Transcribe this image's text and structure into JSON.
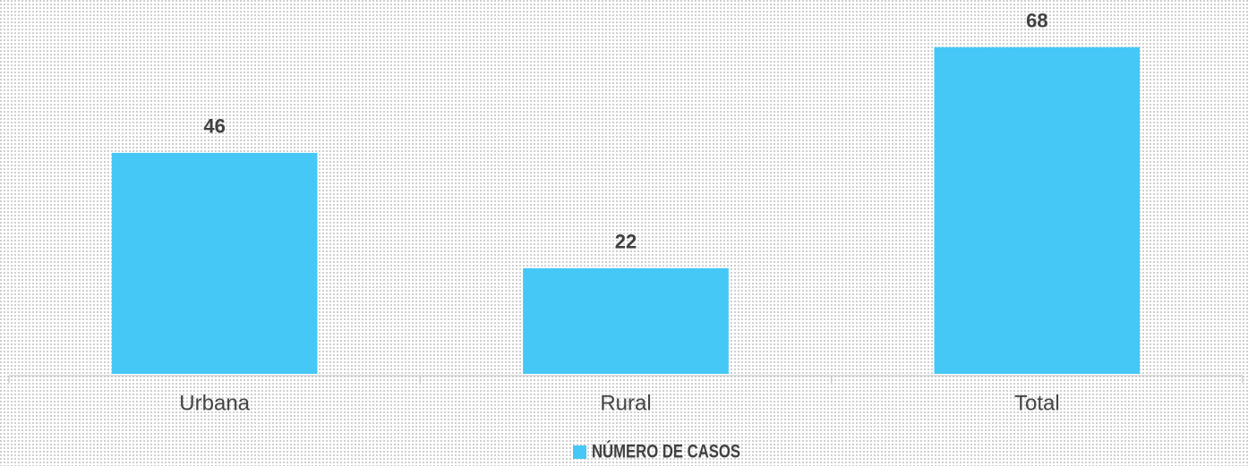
{
  "chart_data": {
    "type": "bar",
    "categories": [
      "Urbana",
      "Rural",
      "Total"
    ],
    "series": [
      {
        "name": "NÚMERO DE CASOS",
        "color": "#45c8f5",
        "values": [
          46,
          22,
          68
        ]
      }
    ],
    "ylim": [
      0,
      70
    ]
  }
}
